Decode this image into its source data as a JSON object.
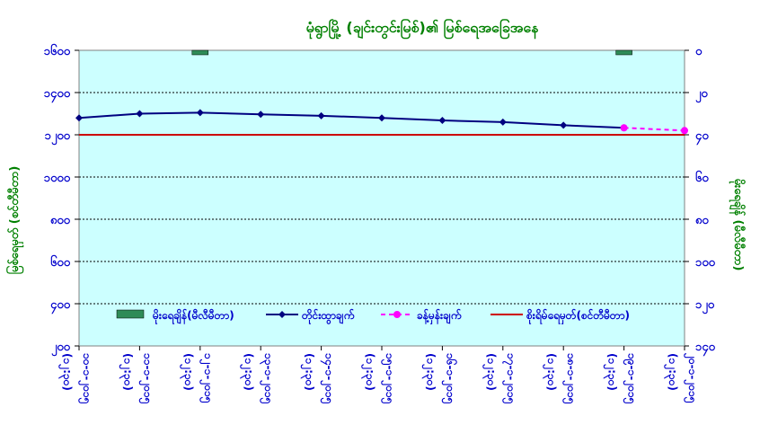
{
  "chart_data": {
    "type": "line",
    "title": "မုံရွာမြို့ (ချင်းတွင်းမြစ်)၏ မြစ်ရေအခြေအနေ",
    "ylabel_left": "မြစ်ရေမှတ် (စင်တီမီတာ)",
    "ylabel_right": "မိုးရေချိန် (မီလီမီတာ)",
    "y_left": {
      "min": 200,
      "max": 1600,
      "ticks": [
        "၁၆၀၀",
        "၁၄၀၀",
        "၁၂၀၀",
        "၁၀၀၀",
        "၈၀၀",
        "၆၀၀",
        "၄၀၀",
        "၂၀၀"
      ]
    },
    "y_right": {
      "min": 0,
      "max": 140,
      "inverted": true,
      "ticks": [
        "၀",
        "၂၀",
        "၄၀",
        "၆၀",
        "၈၀",
        "၁၀၀",
        "၁၂၀",
        "၁၄၀"
      ]
    },
    "x": [
      "၁၀-၁-၂၀၁၅ (၁၂:၃၀)",
      "၁၁-၁-၂၀၁၅ (၁၂:၃၀)",
      "၁၂-၁-၂၀၁၅ (၁၂:၃၀)",
      "၁၃-၁-၂၀၁၅ (၁၂:၃၀)",
      "၁၄-၁-၂၀၁၅ (၁၂:၃၀)",
      "၁၅-၁-၂၀၁၅ (၁၂:၃၀)",
      "၁၆-၁-၂၀၁၅ (၁၂:၃၀)",
      "၁၇-၁-၂၀၁၅ (၁၂:၃၀)",
      "၁၈-၁-၂၀၁၅ (၁၂:၃၀)",
      "၁၉-၁-၂၀၁၅ (၁၂:၃၀)",
      "၂၀-၁-၂၀၁၅ (၁၂:၃၀)"
    ],
    "series": [
      {
        "name": "တိုင်းထွာချက်",
        "color": "#000080",
        "kind": "line",
        "values": [
          1280,
          1300,
          1305,
          1297,
          1290,
          1280,
          1268,
          1260,
          1245,
          1233,
          null
        ]
      },
      {
        "name": "ခန့်မှန်းချက်",
        "color": "#ff00ff",
        "kind": "dashed",
        "values": [
          null,
          null,
          null,
          null,
          null,
          null,
          null,
          null,
          null,
          1233,
          1220
        ]
      },
      {
        "name": "စိုးရိမ်ရေမှတ်(စင်တီမီတာ)",
        "color": "#cc0000",
        "kind": "threshold",
        "value": 1200
      },
      {
        "name": "မိုးရေချိန်(မီလီမီတာ)",
        "color": "#2e8b57",
        "kind": "rain-bar",
        "values": [
          0,
          0,
          2,
          0,
          0,
          0,
          0,
          0,
          0,
          2,
          0
        ]
      }
    ],
    "grid": true,
    "legend": "bottom-inside",
    "colors": {
      "plot_bg": "#ccffff",
      "title": "#008000",
      "axis_text": "#0000cc",
      "axis_label": "#008000"
    }
  }
}
